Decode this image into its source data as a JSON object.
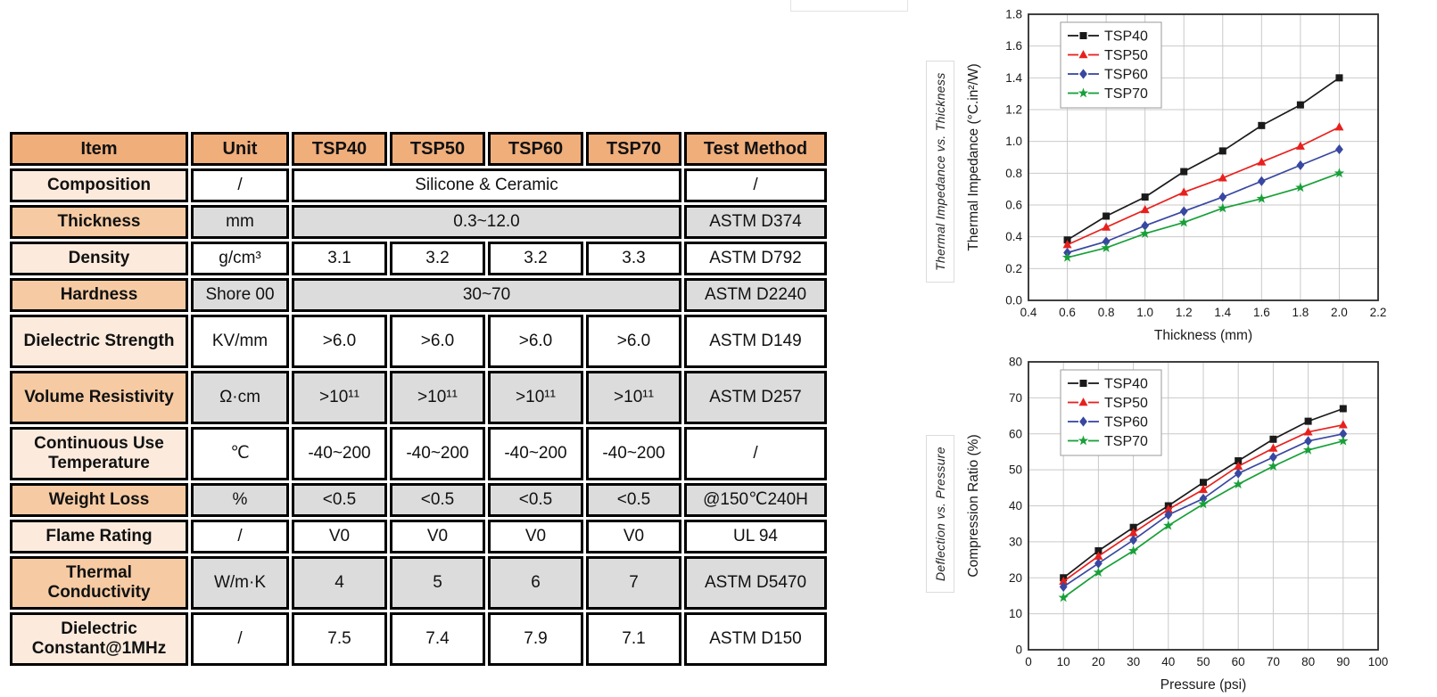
{
  "page": {
    "background": "#ffffff"
  },
  "table": {
    "headers": [
      "Item",
      "Unit",
      "TSP40",
      "TSP50",
      "TSP60",
      "TSP70",
      "Test Method"
    ],
    "rows": [
      {
        "item": "Composition",
        "unit": "/",
        "values": [
          "Silicone & Ceramic"
        ],
        "method": "/"
      },
      {
        "item": "Thickness",
        "unit": "mm",
        "values": [
          "0.3~12.0"
        ],
        "method": "ASTM D374"
      },
      {
        "item": "Density",
        "unit": "g/cm³",
        "values": [
          "3.1",
          "3.2",
          "3.2",
          "3.3"
        ],
        "method": "ASTM D792"
      },
      {
        "item": "Hardness",
        "unit": "Shore 00",
        "values": [
          "30~70"
        ],
        "method": "ASTM D2240"
      },
      {
        "item": "Dielectric Strength",
        "unit": "KV/mm",
        "values": [
          ">6.0",
          ">6.0",
          ">6.0",
          ">6.0"
        ],
        "method": "ASTM D149",
        "tall": true
      },
      {
        "item": "Volume Resistivity",
        "unit": "Ω·cm",
        "values": [
          ">10¹¹",
          ">10¹¹",
          ">10¹¹",
          ">10¹¹"
        ],
        "method": "ASTM D257",
        "tall": true
      },
      {
        "item": "Continuous Use Temperature",
        "unit": "℃",
        "values": [
          "-40~200",
          "-40~200",
          "-40~200",
          "-40~200"
        ],
        "method": "/",
        "tall": true
      },
      {
        "item": "Weight Loss",
        "unit": "%",
        "values": [
          "<0.5",
          "<0.5",
          "<0.5",
          "<0.5"
        ],
        "method": "@150℃240H"
      },
      {
        "item": "Flame Rating",
        "unit": "/",
        "values": [
          "V0",
          "V0",
          "V0",
          "V0"
        ],
        "method": "UL 94"
      },
      {
        "item": "Thermal Conductivity",
        "unit": "W/m·K",
        "values": [
          "4",
          "5",
          "6",
          "7"
        ],
        "method": "ASTM D5470",
        "tall": true
      },
      {
        "item": "Dielectric Constant@1MHz",
        "unit": "/",
        "values": [
          "7.5",
          "7.4",
          "7.9",
          "7.1"
        ],
        "method": "ASTM D150",
        "tall": true
      }
    ],
    "colors": {
      "header_bg": "#f0ae7b",
      "item_light": "#fcebdd",
      "item_medium": "#f6cba4",
      "row_white": "#ffffff",
      "row_gray": "#dcdcdc",
      "border": "#000000"
    }
  },
  "chart_data": [
    {
      "type": "line",
      "side_label": "Thermal Impedance vs. Thickness",
      "xlabel": "Thickness (mm)",
      "ylabel": "Thermal Impedance (°C.in²/W)",
      "xlim": [
        0.4,
        2.2
      ],
      "ylim": [
        0.0,
        1.8
      ],
      "xticks": [
        0.4,
        0.6,
        0.8,
        1.0,
        1.2,
        1.4,
        1.6,
        1.8,
        2.0,
        2.2
      ],
      "yticks": [
        0.0,
        0.2,
        0.4,
        0.6,
        0.8,
        1.0,
        1.2,
        1.4,
        1.6,
        1.8
      ],
      "xtick_labels": [
        "0.4",
        "0.6",
        "0.8",
        "1.0",
        "1.2",
        "1.4",
        "1.6",
        "1.8",
        "2.0",
        "2.2"
      ],
      "ytick_labels": [
        "0.0",
        "0.2",
        "0.4",
        "0.6",
        "0.8",
        "1.0",
        "1.2",
        "1.4",
        "1.6",
        "1.8"
      ],
      "grid": true,
      "legend_position": "top-left",
      "x": [
        0.6,
        0.8,
        1.0,
        1.2,
        1.4,
        1.6,
        1.8,
        2.0
      ],
      "series": [
        {
          "name": "TSP40",
          "color": "#1a1a1a",
          "marker": "square",
          "values": [
            0.38,
            0.53,
            0.65,
            0.81,
            0.94,
            1.1,
            1.23,
            1.4
          ]
        },
        {
          "name": "TSP50",
          "color": "#e8201d",
          "marker": "triangle",
          "values": [
            0.35,
            0.46,
            0.57,
            0.68,
            0.77,
            0.87,
            0.97,
            1.09
          ]
        },
        {
          "name": "TSP60",
          "color": "#3847a0",
          "marker": "diamond",
          "values": [
            0.3,
            0.37,
            0.47,
            0.56,
            0.65,
            0.75,
            0.85,
            0.95
          ]
        },
        {
          "name": "TSP70",
          "color": "#18a038",
          "marker": "star",
          "values": [
            0.27,
            0.33,
            0.42,
            0.49,
            0.58,
            0.64,
            0.71,
            0.8
          ]
        }
      ]
    },
    {
      "type": "line",
      "side_label": "Deflection vs. Pressure",
      "xlabel": "Pressure (psi)",
      "ylabel": "Compression Ratio (%)",
      "xlim": [
        0,
        100
      ],
      "ylim": [
        0,
        80
      ],
      "xticks": [
        0,
        10,
        20,
        30,
        40,
        50,
        60,
        70,
        80,
        90,
        100
      ],
      "yticks": [
        0,
        10,
        20,
        30,
        40,
        50,
        60,
        70,
        80
      ],
      "xtick_labels": [
        "0",
        "10",
        "20",
        "30",
        "40",
        "50",
        "60",
        "70",
        "80",
        "90",
        "100"
      ],
      "ytick_labels": [
        "0",
        "10",
        "20",
        "30",
        "40",
        "50",
        "60",
        "70",
        "80"
      ],
      "grid": true,
      "legend_position": "top-left",
      "x": [
        10,
        20,
        30,
        40,
        50,
        60,
        70,
        80,
        90
      ],
      "series": [
        {
          "name": "TSP40",
          "color": "#1a1a1a",
          "marker": "square",
          "values": [
            20.0,
            27.5,
            34.0,
            40.0,
            46.5,
            52.5,
            58.5,
            63.5,
            67.0
          ]
        },
        {
          "name": "TSP50",
          "color": "#e8201d",
          "marker": "triangle",
          "values": [
            19.0,
            26.0,
            32.5,
            39.0,
            44.5,
            51.0,
            56.0,
            60.5,
            62.5
          ]
        },
        {
          "name": "TSP60",
          "color": "#3847a0",
          "marker": "diamond",
          "values": [
            17.5,
            24.0,
            30.5,
            37.5,
            42.0,
            49.0,
            53.5,
            58.0,
            60.0
          ]
        },
        {
          "name": "TSP70",
          "color": "#18a038",
          "marker": "star",
          "values": [
            14.5,
            21.5,
            27.5,
            34.5,
            40.5,
            46.0,
            51.0,
            55.5,
            58.0
          ]
        }
      ]
    }
  ]
}
